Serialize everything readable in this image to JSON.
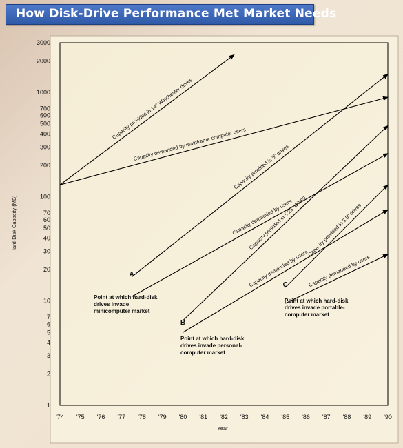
{
  "title": "How Disk-Drive Performance Met Market Needs",
  "chart_data": {
    "type": "line",
    "ylabel": "Hard-Disk Capacity (MB)",
    "xlabel": "Year",
    "ylog": true,
    "ylim": [
      1,
      3000
    ],
    "xlim": [
      1974,
      1990
    ],
    "y_ticks": [
      1,
      2,
      3,
      4,
      5,
      6,
      7,
      10,
      20,
      30,
      40,
      50,
      60,
      70,
      100,
      200,
      300,
      400,
      500,
      600,
      700,
      1000,
      2000,
      3000
    ],
    "x_ticks": [
      "'74",
      "'75",
      "'76",
      "'77",
      "'78",
      "'79",
      "'80",
      "'81",
      "'82",
      "'83",
      "'84",
      "'85",
      "'86",
      "'87",
      "'88",
      "'89",
      "'90"
    ],
    "series": [
      {
        "name": "Capacity provided in 14\" Winchester drives",
        "x": [
          1974,
          1982.5
        ],
        "y": [
          130,
          2300
        ]
      },
      {
        "name": "Capacity demanded by mainframe-computer users",
        "x": [
          1974,
          1990
        ],
        "y": [
          130,
          900
        ]
      },
      {
        "name": "Capacity provided in 8\" drives",
        "x": [
          1977.5,
          1990
        ],
        "y": [
          17,
          1500
        ]
      },
      {
        "name": "Capacity demanded by users",
        "x": [
          1977.5,
          1990
        ],
        "y": [
          11,
          260
        ]
      },
      {
        "name": "Capacity provided in 5.25\" drives",
        "x": [
          1980,
          1990
        ],
        "y": [
          6.5,
          480
        ]
      },
      {
        "name": "Capacity demanded by users",
        "x": [
          1980,
          1990
        ],
        "y": [
          5,
          75
        ]
      },
      {
        "name": "Capacity provided in 3.5\" drives",
        "x": [
          1985,
          1990
        ],
        "y": [
          13.5,
          130
        ]
      },
      {
        "name": "Capacity demanded by users",
        "x": [
          1985,
          1990
        ],
        "y": [
          9.5,
          28
        ]
      }
    ],
    "annotations": [
      {
        "letter": "A",
        "text": [
          "Point at which hard-disk",
          "drives invade",
          "minicomputer market"
        ]
      },
      {
        "letter": "B",
        "text": [
          "Point at which hard-disk",
          "drives invade personal-",
          "computer market"
        ]
      },
      {
        "letter": "C",
        "text": [
          "Point at which hard-disk",
          "drives invade portable-",
          "computer market"
        ]
      }
    ]
  }
}
